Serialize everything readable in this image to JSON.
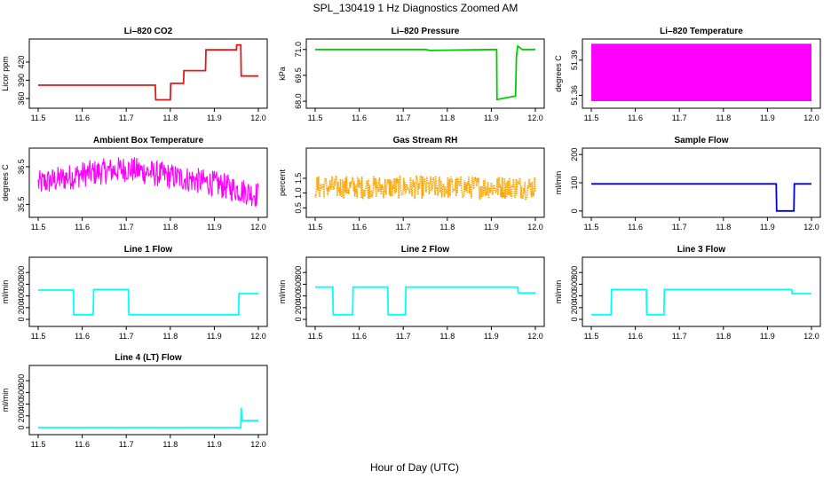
{
  "figure": {
    "title": "SPL_130419  1 Hz Diagnostics Zoomed AM",
    "xlabel": "Hour of Day (UTC)"
  },
  "colors": {
    "red": "#e31a1c",
    "green": "#00cc00",
    "magenta": "#ff00ff",
    "orange": "#ffa500",
    "blue": "#0000cc",
    "cyan": "#00ffff"
  },
  "chart_data": [
    {
      "type": "line",
      "title": "Li–820 CO2",
      "ylabel": "Licor ppm",
      "color": "red",
      "xlim": [
        11.5,
        12.0
      ],
      "xticks": [
        "11.5",
        "11.6",
        "11.7",
        "11.8",
        "11.9",
        "12.0"
      ],
      "ylim": [
        350,
        452
      ],
      "yticks": [
        "360",
        "390",
        "420"
      ],
      "x": [
        11.5,
        11.766,
        11.767,
        11.8,
        11.801,
        11.83,
        11.831,
        11.88,
        11.881,
        11.95,
        11.951,
        11.96,
        11.961,
        12.0
      ],
      "y": [
        382,
        382,
        358,
        358,
        385,
        385,
        406,
        406,
        440,
        440,
        448,
        448,
        397,
        397
      ]
    },
    {
      "type": "line",
      "title": "Li–820 Pressure",
      "ylabel": "kPa",
      "color": "green",
      "xlim": [
        11.5,
        12.0
      ],
      "xticks": [
        "11.5",
        "11.6",
        "11.7",
        "11.8",
        "11.9",
        "12.0"
      ],
      "ylim": [
        67.8,
        71.4
      ],
      "yticks": [
        "68.0",
        "69.5",
        "71.0"
      ],
      "x": [
        11.5,
        11.75,
        11.76,
        11.91,
        11.912,
        11.913,
        11.955,
        11.957,
        11.96,
        11.97,
        12.0
      ],
      "y": [
        71.0,
        71.0,
        70.95,
        71.0,
        71.0,
        68.1,
        68.3,
        70.6,
        71.2,
        71.0,
        71.0
      ]
    },
    {
      "type": "area",
      "title": "Li–820 Temperature",
      "ylabel": "degrees C",
      "color": "magenta",
      "xlim": [
        11.5,
        12.0
      ],
      "xticks": [
        "11.5",
        "11.6",
        "11.7",
        "11.8",
        "11.9",
        "12.0"
      ],
      "ylim": [
        51.352,
        51.405
      ],
      "yticks": [
        "51.36",
        "51.39"
      ],
      "x": [
        11.5,
        12.0
      ],
      "band": [
        51.355,
        51.404
      ]
    },
    {
      "type": "line",
      "title": "Ambient Box Temperature",
      "ylabel": "degrees C",
      "color": "magenta",
      "xlim": [
        11.5,
        12.0
      ],
      "xticks": [
        "11.5",
        "11.6",
        "11.7",
        "11.8",
        "11.9",
        "12.0"
      ],
      "ylim": [
        35.25,
        36.9
      ],
      "yticks": [
        "35.5",
        "36.5"
      ],
      "x": [
        11.5,
        11.6,
        11.7,
        11.8,
        11.9,
        12.0
      ],
      "y": [
        36.05,
        36.3,
        36.45,
        36.25,
        36.05,
        35.75
      ],
      "noise": 0.35
    },
    {
      "type": "scatter",
      "title": "Gas Stream RH",
      "ylabel": "percent",
      "color": "orange",
      "xlim": [
        11.5,
        12.0
      ],
      "xticks": [
        "11.5",
        "11.6",
        "11.7",
        "11.8",
        "11.9",
        "12.0"
      ],
      "ylim": [
        0.3,
        2.4
      ],
      "yticks": [
        "0.5",
        "1.0",
        "1.5"
      ],
      "x": [
        11.5,
        12.0
      ],
      "y": [
        1.2,
        1.2
      ],
      "noise": 0.4
    },
    {
      "type": "line",
      "title": "Sample Flow",
      "ylabel": "ml/min",
      "color": "blue",
      "xlim": [
        11.5,
        12.0
      ],
      "xticks": [
        "11.5",
        "11.6",
        "11.7",
        "11.8",
        "11.9",
        "12.0"
      ],
      "ylim": [
        -10,
        210
      ],
      "yticks": [
        "0",
        "100",
        "200"
      ],
      "x": [
        11.5,
        11.92,
        11.921,
        11.96,
        11.961,
        12.0
      ],
      "y": [
        96,
        96,
        0,
        0,
        96,
        96
      ]
    },
    {
      "type": "line",
      "title": "Line 1 Flow",
      "ylabel": "ml/min",
      "color": "cyan",
      "xlim": [
        11.5,
        12.0
      ],
      "xticks": [
        "11.5",
        "11.6",
        "11.7",
        "11.8",
        "11.9",
        "12.0"
      ],
      "ylim": [
        -60,
        1000
      ],
      "yticks": [
        "0",
        "200",
        "400",
        "600",
        "800"
      ],
      "x": [
        11.5,
        11.58,
        11.581,
        11.625,
        11.626,
        11.705,
        11.706,
        11.955,
        11.956,
        12.0
      ],
      "y": [
        500,
        500,
        80,
        80,
        510,
        510,
        80,
        80,
        440,
        440
      ]
    },
    {
      "type": "line",
      "title": "Line 2 Flow",
      "ylabel": "ml/min",
      "color": "cyan",
      "xlim": [
        11.5,
        12.0
      ],
      "xticks": [
        "11.5",
        "11.6",
        "11.7",
        "11.8",
        "11.9",
        "12.0"
      ],
      "ylim": [
        -60,
        1000
      ],
      "yticks": [
        "0",
        "200",
        "400",
        "600",
        "800"
      ],
      "x": [
        11.5,
        11.54,
        11.541,
        11.585,
        11.586,
        11.665,
        11.666,
        11.705,
        11.706,
        11.96,
        11.961,
        12.0
      ],
      "y": [
        550,
        550,
        80,
        80,
        550,
        550,
        80,
        80,
        550,
        550,
        450,
        450
      ]
    },
    {
      "type": "line",
      "title": "Line 3 Flow",
      "ylabel": "ml/min",
      "color": "cyan",
      "xlim": [
        11.5,
        12.0
      ],
      "xticks": [
        "11.5",
        "11.6",
        "11.7",
        "11.8",
        "11.9",
        "12.0"
      ],
      "ylim": [
        -60,
        1000
      ],
      "yticks": [
        "0",
        "200",
        "400",
        "600",
        "800"
      ],
      "x": [
        11.5,
        11.545,
        11.546,
        11.625,
        11.626,
        11.665,
        11.666,
        11.955,
        11.956,
        12.0
      ],
      "y": [
        80,
        80,
        510,
        510,
        80,
        80,
        510,
        510,
        440,
        440
      ]
    },
    {
      "type": "line",
      "title": "Line 4 (LT) Flow",
      "ylabel": "ml/min",
      "color": "cyan",
      "xlim": [
        11.5,
        12.0
      ],
      "xticks": [
        "11.5",
        "11.6",
        "11.7",
        "11.8",
        "11.9",
        "12.0"
      ],
      "ylim": [
        -60,
        1000
      ],
      "yticks": [
        "0",
        "200",
        "400",
        "600",
        "800"
      ],
      "x": [
        11.5,
        11.96,
        11.961,
        11.962,
        11.963,
        12.0
      ],
      "y": [
        0,
        0,
        340,
        190,
        120,
        120
      ]
    }
  ]
}
